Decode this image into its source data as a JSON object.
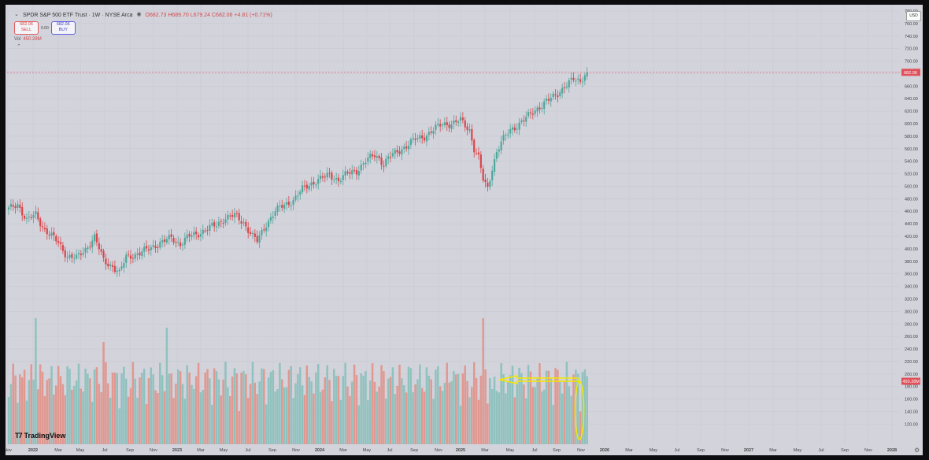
{
  "header": {
    "title": "SPDR S&P 500 ETF Trust · 1W · NYSE Arca",
    "ohlc": "O682.73 H689.70 L679.24 C682.06 +4.81 (+0.71%)",
    "sell_price": "682.06",
    "sell_label": "SELL",
    "spread": "0.00",
    "buy_price": "682.06",
    "buy_label": "BUY",
    "vol_label": "Vol",
    "vol_value": "450.28M",
    "currency": "USD"
  },
  "brand": "TradingView",
  "colors": {
    "up": "#4ea79b",
    "down": "#d9454a",
    "up_volume": "#8fc2be",
    "down_volume": "#e09890",
    "price_line": "#e0505a",
    "background": "#d3d3dc",
    "highlight": "#f2e600"
  },
  "chart_data": {
    "type": "candlestick",
    "title": "SPDR S&P 500 ETF Trust · 1W · NYSE Arca",
    "interval": "1W",
    "price_axis": {
      "ticks": [
        120,
        140,
        160,
        180,
        200,
        220,
        240,
        260,
        280,
        300,
        320,
        340,
        360,
        380,
        400,
        420,
        440,
        460,
        480,
        500,
        520,
        540,
        560,
        580,
        600,
        620,
        640,
        660,
        680,
        700,
        720,
        740,
        760,
        780
      ],
      "ylim": [
        110,
        790
      ]
    },
    "last_price": 682.06,
    "last_volume": "450.28M",
    "time_axis": [
      "Nov",
      "2022",
      "Mar",
      "May",
      "Jul",
      "Sep",
      "Nov",
      "2023",
      "Mar",
      "May",
      "Jul",
      "Sep",
      "Nov",
      "2024",
      "Mar",
      "May",
      "Jul",
      "Sep",
      "Nov",
      "2025",
      "Mar",
      "May",
      "Jul",
      "Sep",
      "Nov",
      "2026",
      "Mar",
      "May",
      "Jul",
      "Sep",
      "Nov",
      "2027",
      "Mar",
      "May",
      "Jul",
      "Sep",
      "Nov",
      "2028"
    ],
    "price_keypoints": [
      [
        0,
        463
      ],
      [
        4,
        472
      ],
      [
        8,
        445
      ],
      [
        12,
        455
      ],
      [
        16,
        430
      ],
      [
        22,
        410
      ],
      [
        26,
        388
      ],
      [
        30,
        385
      ],
      [
        34,
        400
      ],
      [
        38,
        418
      ],
      [
        42,
        382
      ],
      [
        46,
        372
      ],
      [
        49,
        360
      ],
      [
        52,
        388
      ],
      [
        58,
        392
      ],
      [
        64,
        405
      ],
      [
        68,
        410
      ],
      [
        72,
        418
      ],
      [
        76,
        408
      ],
      [
        80,
        420
      ],
      [
        84,
        425
      ],
      [
        88,
        432
      ],
      [
        92,
        438
      ],
      [
        96,
        450
      ],
      [
        100,
        453
      ],
      [
        104,
        442
      ],
      [
        108,
        420
      ],
      [
        110,
        412
      ],
      [
        114,
        440
      ],
      [
        118,
        460
      ],
      [
        122,
        470
      ],
      [
        126,
        478
      ],
      [
        130,
        495
      ],
      [
        134,
        505
      ],
      [
        138,
        512
      ],
      [
        142,
        518
      ],
      [
        146,
        510
      ],
      [
        150,
        520
      ],
      [
        154,
        525
      ],
      [
        158,
        540
      ],
      [
        162,
        550
      ],
      [
        164,
        545
      ],
      [
        166,
        535
      ],
      [
        168,
        545
      ],
      [
        172,
        555
      ],
      [
        176,
        565
      ],
      [
        180,
        575
      ],
      [
        184,
        580
      ],
      [
        188,
        590
      ],
      [
        192,
        600
      ],
      [
        196,
        600
      ],
      [
        200,
        605
      ],
      [
        204,
        590
      ],
      [
        206,
        560
      ],
      [
        208,
        545
      ],
      [
        210,
        510
      ],
      [
        212,
        496
      ],
      [
        214,
        530
      ],
      [
        216,
        555
      ],
      [
        218,
        570
      ],
      [
        222,
        590
      ],
      [
        226,
        600
      ],
      [
        230,
        612
      ],
      [
        234,
        625
      ],
      [
        238,
        635
      ],
      [
        242,
        645
      ],
      [
        246,
        660
      ],
      [
        250,
        670
      ],
      [
        253,
        668
      ],
      [
        255,
        680
      ],
      [
        256,
        682.06
      ]
    ],
    "volume_axis": {
      "ticks": [
        120,
        140,
        160,
        180,
        200,
        220,
        240,
        260,
        280
      ],
      "unit": "M"
    },
    "volume_spikes": [
      [
        12,
        270
      ],
      [
        42,
        240
      ],
      [
        70,
        258
      ],
      [
        72,
        200
      ],
      [
        196,
        190
      ],
      [
        210,
        270
      ],
      [
        214,
        180
      ]
    ],
    "annotation": "yellow arrow highlighting recent volume"
  }
}
